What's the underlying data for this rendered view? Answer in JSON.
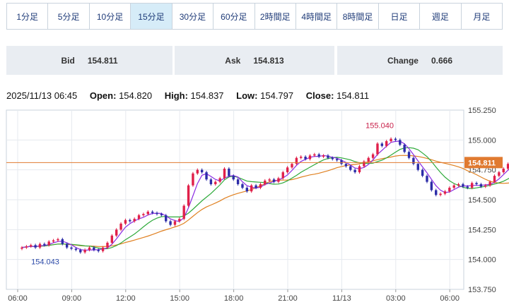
{
  "tabs": [
    {
      "label": "1分足",
      "active": false
    },
    {
      "label": "5分足",
      "active": false
    },
    {
      "label": "10分足",
      "active": false
    },
    {
      "label": "15分足",
      "active": true
    },
    {
      "label": "30分足",
      "active": false
    },
    {
      "label": "60分足",
      "active": false
    },
    {
      "label": "2時間足",
      "active": false
    },
    {
      "label": "4時間足",
      "active": false
    },
    {
      "label": "8時間足",
      "active": false
    },
    {
      "label": "日足",
      "active": false
    },
    {
      "label": "週足",
      "active": false
    },
    {
      "label": "月足",
      "active": false
    }
  ],
  "quote": {
    "bid_label": "Bid",
    "bid_value": "154.811",
    "ask_label": "Ask",
    "ask_value": "154.813",
    "change_label": "Change",
    "change_value": "0.666"
  },
  "ohlc": {
    "datetime": "2025/11/13 06:45",
    "open_label": "Open:",
    "open_value": "154.820",
    "high_label": "High:",
    "high_value": "154.837",
    "low_label": "Low:",
    "low_value": "154.797",
    "close_label": "Close:",
    "close_value": "154.811"
  },
  "chart_data": {
    "type": "candlestick",
    "ylim": [
      153.75,
      155.25
    ],
    "y_ticks": [
      "155.250",
      "155.000",
      "154.750",
      "154.500",
      "154.250",
      "154.000",
      "153.750"
    ],
    "x_tick_labels": [
      "06:00",
      "09:00",
      "12:00",
      "15:00",
      "18:00",
      "21:00",
      "11/13",
      "03:00",
      "06:00"
    ],
    "current_price": "154.811",
    "max_label": "155.040",
    "min_label": "154.043",
    "colors": {
      "up": "#e0204a",
      "down": "#2c2ca8",
      "ma_short": "#8a2be2",
      "ma_mid": "#2eaa3a",
      "ma_long": "#e08020",
      "current_line": "#e07a30",
      "current_label_bg": "#e07a30"
    },
    "closes": [
      154.1,
      154.11,
      154.12,
      154.1,
      154.13,
      154.12,
      154.15,
      154.16,
      154.17,
      154.13,
      154.1,
      154.09,
      154.08,
      154.06,
      154.08,
      154.1,
      154.08,
      154.07,
      154.1,
      154.14,
      154.2,
      154.25,
      154.3,
      154.33,
      154.32,
      154.34,
      154.37,
      154.38,
      154.4,
      154.39,
      154.38,
      154.37,
      154.32,
      154.29,
      154.32,
      154.34,
      154.45,
      154.62,
      154.72,
      154.75,
      154.73,
      154.67,
      154.63,
      154.65,
      154.68,
      154.76,
      154.7,
      154.67,
      154.63,
      154.6,
      154.57,
      154.62,
      154.6,
      154.63,
      154.66,
      154.67,
      154.65,
      154.68,
      154.73,
      154.77,
      154.8,
      154.85,
      154.86,
      154.84,
      154.87,
      154.88,
      154.86,
      154.87,
      154.85,
      154.84,
      154.83,
      154.8,
      154.78,
      154.75,
      154.73,
      154.78,
      154.82,
      154.85,
      154.88,
      154.97,
      154.95,
      154.99,
      155.01,
      155.0,
      154.96,
      154.9,
      154.85,
      154.8,
      154.75,
      154.7,
      154.65,
      154.58,
      154.54,
      154.55,
      154.57,
      154.6,
      154.62,
      154.63,
      154.61,
      154.6,
      154.64,
      154.63,
      154.61,
      154.62,
      154.65,
      154.7,
      154.73,
      154.76,
      154.8,
      154.81
    ]
  }
}
